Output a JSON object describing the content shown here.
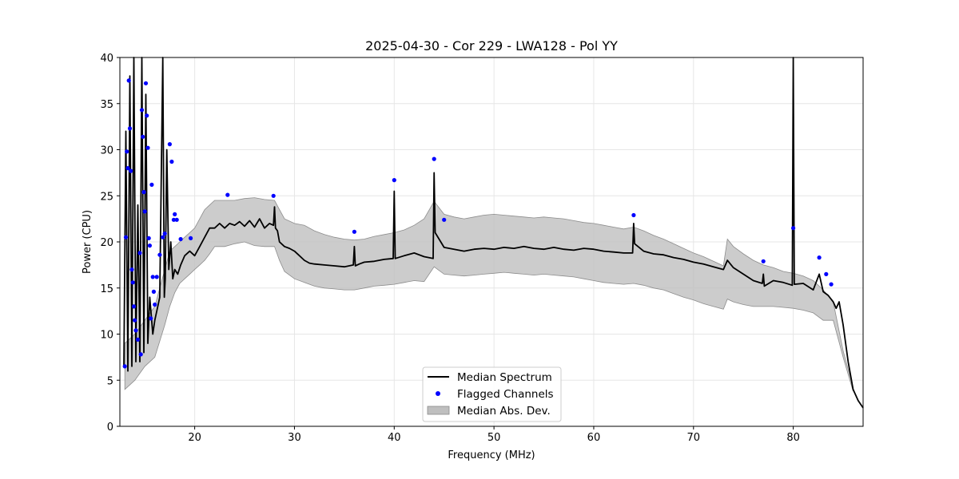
{
  "chart_data": {
    "type": "line",
    "title": "2025-04-30 - Cor 229 - LWA128 - Pol YY",
    "xlabel": "Frequency (MHz)",
    "ylabel": "Power (CPU)",
    "xlim": [
      12.5,
      87.0
    ],
    "ylim": [
      0,
      40
    ],
    "xticks": [
      20,
      30,
      40,
      50,
      60,
      70,
      80
    ],
    "yticks": [
      0,
      5,
      10,
      15,
      20,
      25,
      30,
      35,
      40
    ],
    "grid": true,
    "legend_position": "lower-center",
    "legend": [
      "Median Spectrum",
      "Flagged Channels",
      "Median Abs. Dev."
    ],
    "colors": {
      "median_line": "#000000",
      "flagged_points": "#0000ff",
      "mad_fill": "#bfbfbf",
      "mad_edge": "#8c8c8c",
      "grid": "#e6e6e6"
    },
    "series": [
      {
        "name": "Median Spectrum",
        "kind": "line",
        "x": [
          12.9,
          13.1,
          13.3,
          13.5,
          13.7,
          13.9,
          14.1,
          14.3,
          14.5,
          14.7,
          14.9,
          15.1,
          15.3,
          15.5,
          15.8,
          16.0,
          16.2,
          16.5,
          16.8,
          16.95,
          17.05,
          17.2,
          17.4,
          17.6,
          17.8,
          18.0,
          18.3,
          18.6,
          19.0,
          19.5,
          20.0,
          20.5,
          21.0,
          21.5,
          22.0,
          22.5,
          23.0,
          23.5,
          24.0,
          24.5,
          25.0,
          25.5,
          26.0,
          26.5,
          27.0,
          27.5,
          27.9,
          28.0,
          28.1,
          28.3,
          28.5,
          29.0,
          29.5,
          30.0,
          30.5,
          31.0,
          31.5,
          32.0,
          33.0,
          34.0,
          35.0,
          35.9,
          36.0,
          36.1,
          36.5,
          37.0,
          38.0,
          39.0,
          39.9,
          40.0,
          40.1,
          41.0,
          42.0,
          43.0,
          43.9,
          44.0,
          44.1,
          45.0,
          46.0,
          47.0,
          48.0,
          49.0,
          50.0,
          51.0,
          52.0,
          53.0,
          54.0,
          55.0,
          56.0,
          57.0,
          58.0,
          59.0,
          60.0,
          61.0,
          62.0,
          63.0,
          63.9,
          64.0,
          64.1,
          65.0,
          66.0,
          67.0,
          68.0,
          69.0,
          70.0,
          71.0,
          72.0,
          73.0,
          73.4,
          74.0,
          75.0,
          76.0,
          76.9,
          77.0,
          77.1,
          78.0,
          79.0,
          79.9,
          80.0,
          80.1,
          81.0,
          82.0,
          82.6,
          83.0,
          83.5,
          84.0,
          84.3,
          84.6,
          85.0,
          85.5,
          86.0,
          86.5,
          87.0
        ],
        "y": [
          6.5,
          32,
          6,
          38,
          6.5,
          40,
          7,
          24,
          7,
          40,
          8,
          36,
          9,
          14,
          10,
          11.5,
          12.5,
          14,
          40,
          14,
          16,
          30,
          17,
          20,
          16,
          17,
          16.5,
          17.5,
          18.5,
          19,
          18.5,
          19.5,
          20.5,
          21.5,
          21.5,
          22,
          21.5,
          22,
          21.8,
          22.2,
          21.7,
          22.3,
          21.6,
          22.5,
          21.5,
          22,
          21.8,
          23.8,
          21.5,
          21.2,
          20,
          19.5,
          19.3,
          19,
          18.5,
          18,
          17.7,
          17.6,
          17.5,
          17.4,
          17.3,
          17.5,
          19.5,
          17.4,
          17.6,
          17.8,
          17.9,
          18.1,
          18.2,
          25.5,
          18.2,
          18.5,
          18.8,
          18.4,
          18.2,
          27.5,
          21,
          19.4,
          19.2,
          19,
          19.2,
          19.3,
          19.2,
          19.4,
          19.3,
          19.5,
          19.3,
          19.2,
          19.4,
          19.2,
          19.1,
          19.3,
          19.2,
          19,
          18.9,
          18.8,
          18.8,
          22,
          19.8,
          19,
          18.7,
          18.6,
          18.3,
          18.1,
          17.8,
          17.6,
          17.3,
          17,
          18,
          17.2,
          16.5,
          15.8,
          15.5,
          16.5,
          15.2,
          15.8,
          15.6,
          15.3,
          40,
          15.4,
          15.5,
          14.8,
          16.5,
          14.6,
          14.2,
          13.5,
          12.8,
          13.5,
          11,
          7,
          4,
          2.8,
          2
        ]
      },
      {
        "name": "Flagged Channels",
        "kind": "scatter",
        "x": [
          13.0,
          13.1,
          13.2,
          13.3,
          13.4,
          13.5,
          13.6,
          13.7,
          13.8,
          13.9,
          14.0,
          14.1,
          14.3,
          14.5,
          14.6,
          14.7,
          14.8,
          14.9,
          15.0,
          15.1,
          15.2,
          15.3,
          15.4,
          15.5,
          15.6,
          15.7,
          15.8,
          15.9,
          16.0,
          16.2,
          16.5,
          16.8,
          17.0,
          17.5,
          17.7,
          17.9,
          18.0,
          18.2,
          18.6,
          19.6,
          23.3,
          27.9,
          36.0,
          40.0,
          44.0,
          45.0,
          64.0,
          77.0,
          80.0,
          82.6,
          83.3,
          83.8
        ],
        "y": [
          6.5,
          20.5,
          29.8,
          28,
          37.5,
          32.3,
          27.7,
          17,
          15.6,
          13,
          11.5,
          10.4,
          9.4,
          18.8,
          7.8,
          34.3,
          31.4,
          25.4,
          23.3,
          37.2,
          33.7,
          30.2,
          20.4,
          19.6,
          11.7,
          26.2,
          16.2,
          14.6,
          13.2,
          16.2,
          18.6,
          20.5,
          20.9,
          30.6,
          28.7,
          22.4,
          23,
          22.4,
          20.3,
          20.4,
          25.1,
          25,
          21.1,
          26.7,
          29,
          22.4,
          22.9,
          17.9,
          21.5,
          18.3,
          16.5,
          15.4
        ]
      },
      {
        "name": "Median Abs. Dev.",
        "kind": "band",
        "x": [
          13.0,
          14.0,
          15.0,
          16.0,
          17.0,
          17.5,
          18.0,
          18.5,
          19.0,
          19.5,
          20.0,
          20.5,
          21.0,
          21.5,
          22.0,
          23.0,
          24.0,
          25.0,
          26.0,
          27.0,
          28.0,
          28.5,
          29.0,
          30.0,
          31.0,
          32.0,
          33.0,
          34.0,
          35.0,
          36.0,
          37.0,
          38.0,
          39.0,
          40.0,
          41.0,
          42.0,
          43.0,
          44.0,
          45.0,
          46.0,
          47.0,
          48.0,
          49.0,
          50.0,
          51.0,
          52.0,
          53.0,
          54.0,
          55.0,
          56.0,
          57.0,
          58.0,
          59.0,
          60.0,
          61.0,
          62.0,
          63.0,
          64.0,
          65.0,
          66.0,
          67.0,
          68.0,
          69.0,
          70.0,
          71.0,
          72.0,
          73.0,
          73.4,
          74.0,
          75.0,
          76.0,
          77.0,
          78.0,
          79.0,
          80.0,
          81.0,
          82.0,
          83.0,
          84.0,
          85.0,
          86.0
        ],
        "lower": [
          4,
          5,
          6.5,
          7.5,
          11,
          13,
          14.5,
          15.5,
          16,
          16.5,
          17,
          17.5,
          18,
          18.7,
          19.5,
          19.5,
          19.8,
          20,
          19.6,
          19.5,
          19.5,
          18,
          16.8,
          16,
          15.6,
          15.2,
          15,
          14.9,
          14.8,
          14.8,
          15,
          15.2,
          15.3,
          15.4,
          15.6,
          15.8,
          15.7,
          17.3,
          16.5,
          16.4,
          16.3,
          16.4,
          16.5,
          16.6,
          16.7,
          16.6,
          16.5,
          16.4,
          16.5,
          16.4,
          16.3,
          16.2,
          16,
          15.8,
          15.6,
          15.5,
          15.4,
          15.5,
          15.3,
          15,
          14.8,
          14.4,
          14,
          13.7,
          13.3,
          13,
          12.7,
          13.8,
          13.5,
          13.2,
          13,
          13,
          13,
          12.9,
          12.8,
          12.6,
          12.3,
          11.5,
          11.5,
          7.5,
          3.8
        ],
        "upper": [
          9,
          10,
          11.5,
          13,
          17,
          19,
          19.5,
          20,
          20.5,
          21,
          21.5,
          22.5,
          23.5,
          24,
          24.5,
          24.5,
          24.5,
          24.7,
          24.8,
          24.6,
          24.5,
          23.5,
          22.5,
          22,
          21.8,
          21.2,
          20.8,
          20.5,
          20.3,
          20.2,
          20.3,
          20.6,
          20.8,
          21,
          21.3,
          21.8,
          22.5,
          24.4,
          23,
          22.7,
          22.5,
          22.7,
          22.9,
          23,
          22.9,
          22.8,
          22.7,
          22.6,
          22.7,
          22.6,
          22.5,
          22.3,
          22.1,
          22,
          21.8,
          21.6,
          21.4,
          21.6,
          21.2,
          20.7,
          20.3,
          19.8,
          19.3,
          18.8,
          18.4,
          17.9,
          17.4,
          20.3,
          19.5,
          18.7,
          18,
          17.5,
          17.2,
          16.8,
          16.6,
          16.3,
          15.8,
          14.8,
          13.5,
          8.2,
          4.2
        ]
      }
    ]
  }
}
